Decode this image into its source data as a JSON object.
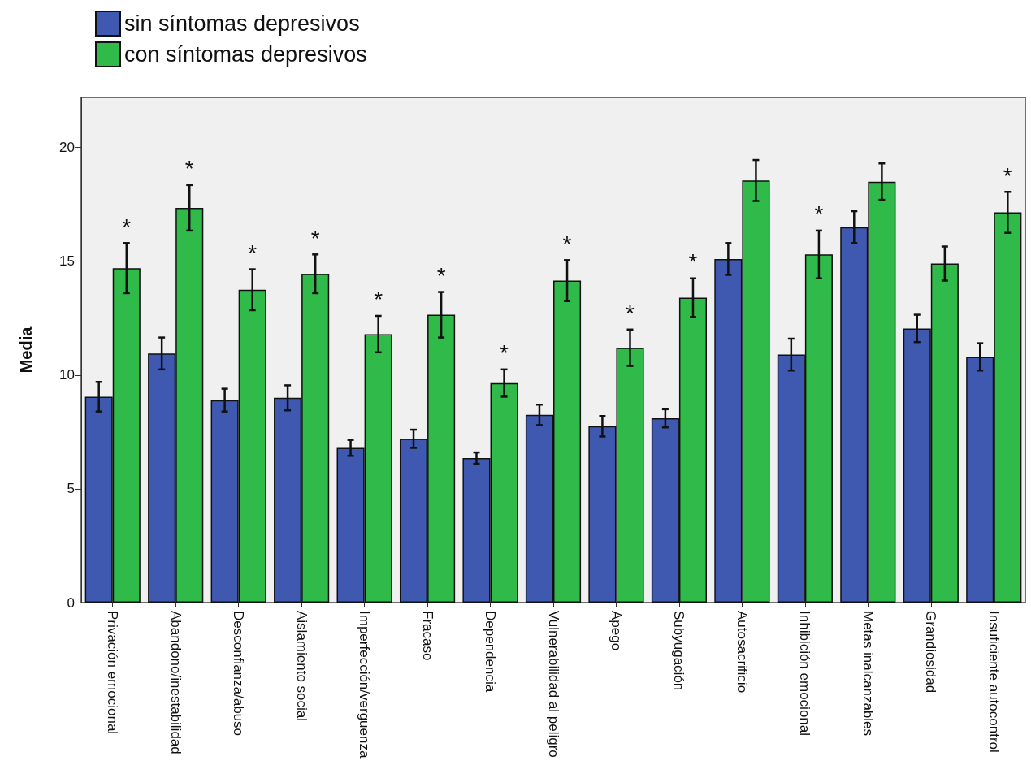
{
  "chart_data": {
    "type": "bar",
    "ylabel": "Media",
    "categories": [
      "Privación emocional",
      "Abandono/inestabilidad",
      "Desconfianza/abuso",
      "Aislamiento social",
      "Imperfección/verguenza",
      "Fracaso",
      "Dependencia",
      "Vulnerabilidad al peligro",
      "Apego",
      "Subyugación",
      "Autosacrificio",
      "Inhibición emocional",
      "Metas inalcanzables",
      "Grandiosidad",
      "Insuficiente autocontrol"
    ],
    "series": [
      {
        "name": "sin síntomas depresivos",
        "color": "#3f58b0",
        "values": [
          9.05,
          10.95,
          8.9,
          9.0,
          6.8,
          7.2,
          6.35,
          8.25,
          7.75,
          8.1,
          15.1,
          10.9,
          16.5,
          12.05,
          10.8
        ],
        "errors": [
          0.65,
          0.7,
          0.5,
          0.55,
          0.35,
          0.4,
          0.25,
          0.45,
          0.45,
          0.4,
          0.7,
          0.7,
          0.7,
          0.6,
          0.6
        ]
      },
      {
        "name": "con síntomas depresivos",
        "color": "#2fba4a",
        "values": [
          14.7,
          17.35,
          13.75,
          14.45,
          11.8,
          12.65,
          9.65,
          14.15,
          11.2,
          13.4,
          18.55,
          15.3,
          18.5,
          14.9,
          17.15
        ],
        "errors": [
          1.1,
          1.0,
          0.9,
          0.85,
          0.8,
          1.0,
          0.6,
          0.9,
          0.8,
          0.85,
          0.9,
          1.05,
          0.8,
          0.75,
          0.9
        ]
      }
    ],
    "annotations": [
      {
        "text": "*",
        "x": "Privación emocional",
        "y": 14.7
      },
      {
        "text": "*",
        "x": "Abandono/inestabilidad",
        "y": 17.35
      },
      {
        "text": "*",
        "x": "Desconfianza/abuso",
        "y": 13.75
      },
      {
        "text": "*",
        "x": "Aislamiento social",
        "y": 14.45
      },
      {
        "text": "*",
        "x": "Imperfección/verguenza",
        "y": 11.8
      },
      {
        "text": "*",
        "x": "Fracaso",
        "y": 12.65
      },
      {
        "text": "*",
        "x": "Dependencia",
        "y": 9.65
      },
      {
        "text": "*",
        "x": "Vulnerabilidad al peligro",
        "y": 14.15
      },
      {
        "text": "*",
        "x": "Apego",
        "y": 11.2
      },
      {
        "text": "*",
        "x": "Subyugación",
        "y": 13.4
      },
      {
        "text": "*",
        "x": "Inhibición emocional",
        "y": 15.3
      },
      {
        "text": "*",
        "x": "Insuficiente autocontrol",
        "y": 17.15
      }
    ],
    "ylim": [
      0,
      22.2
    ],
    "yticks": [
      0,
      5,
      10,
      15,
      20
    ],
    "grid": false,
    "legend": "top left"
  }
}
